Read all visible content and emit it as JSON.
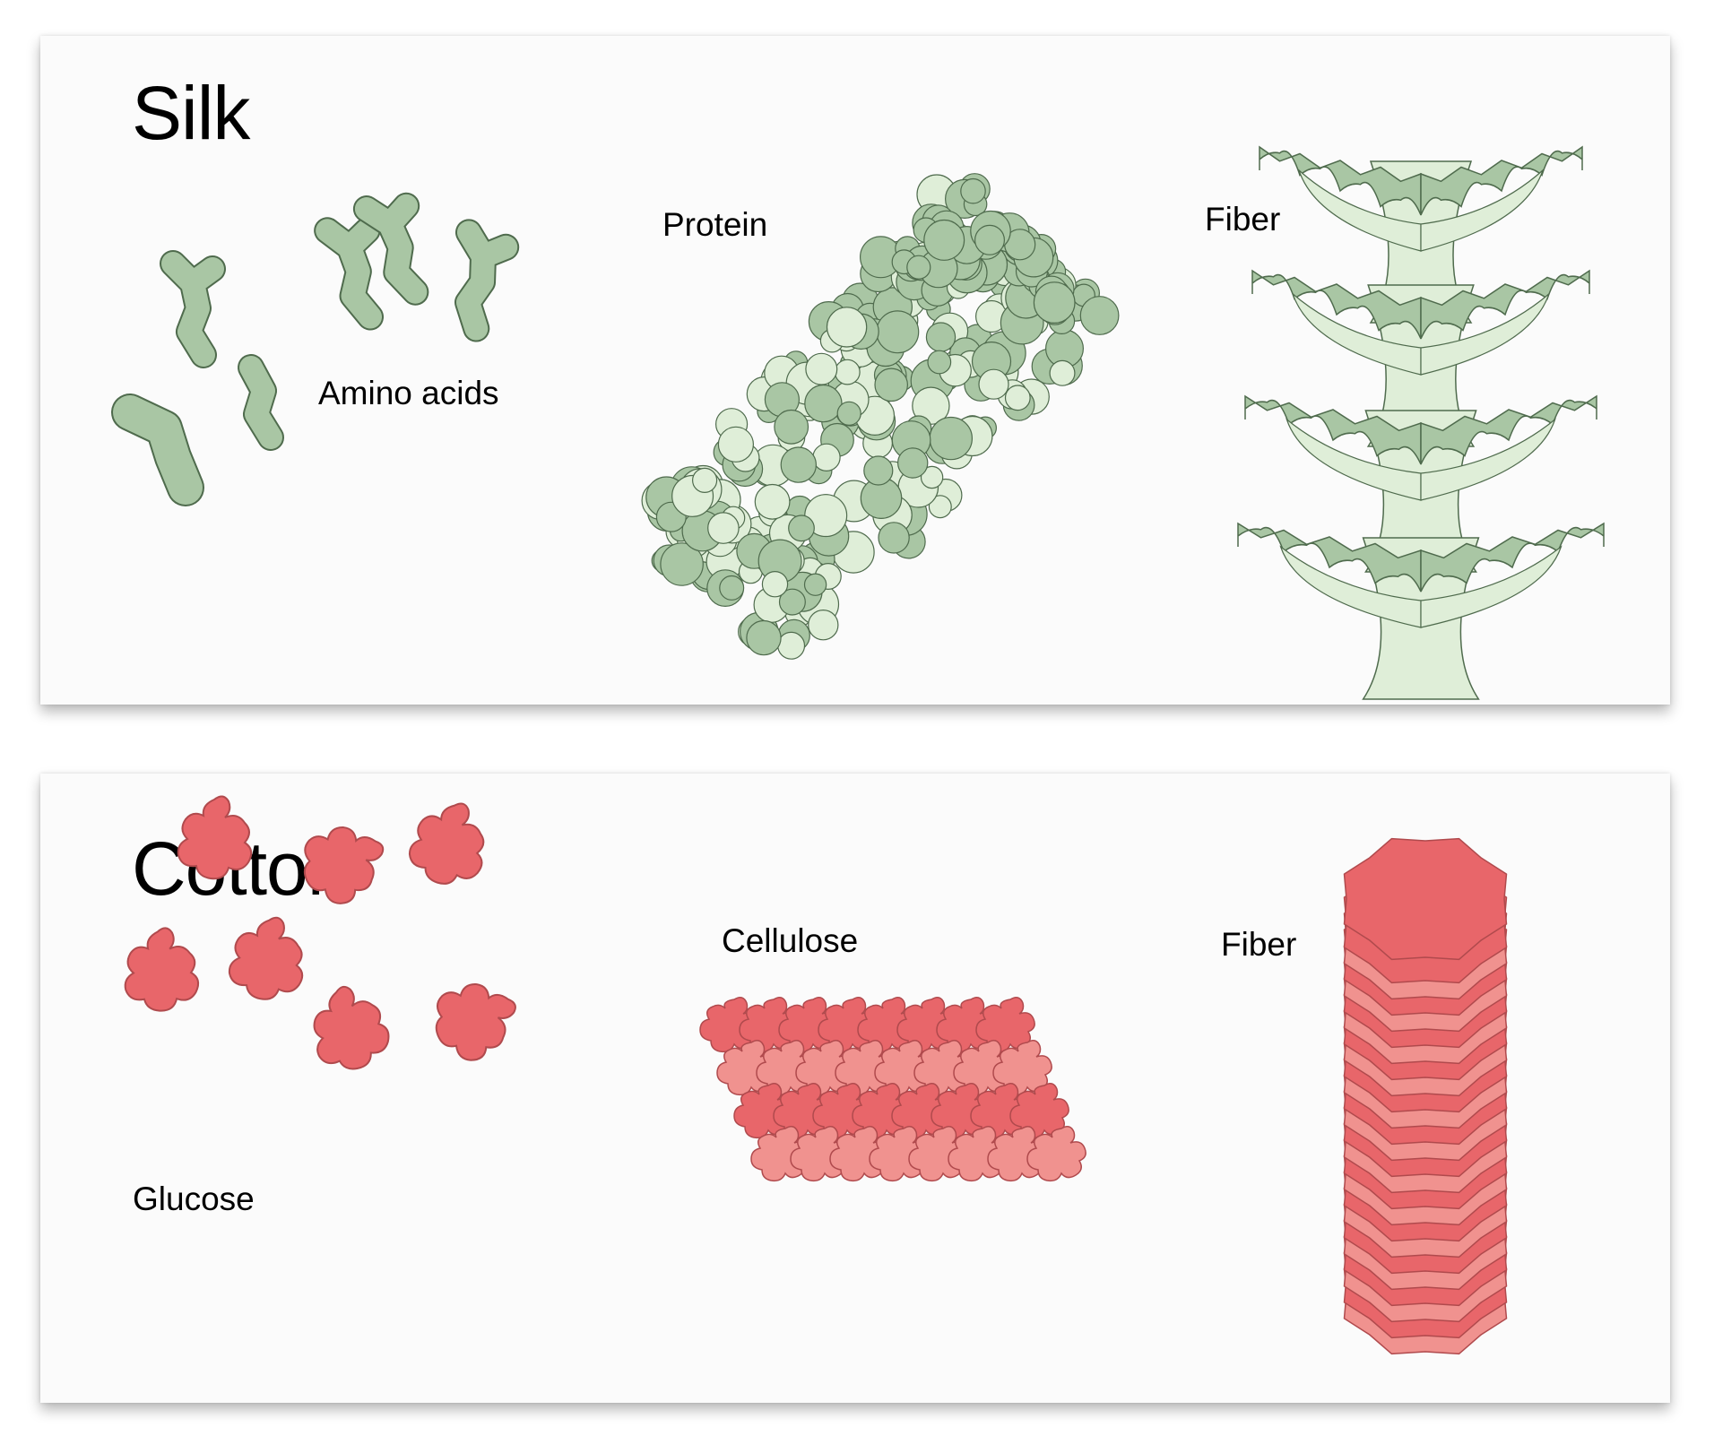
{
  "silk": {
    "title": "Silk",
    "labels": {
      "monomer": "Amino acids",
      "polymer": "Protein",
      "fiber": "Fiber"
    }
  },
  "cotton": {
    "title": "Cotton",
    "labels": {
      "monomer": "Glucose",
      "polymer": "Cellulose",
      "fiber": "Fiber"
    }
  },
  "colors": {
    "silk_dark": "#a9c6a4",
    "silk_light": "#dfeed8",
    "silk_stroke": "#4f6b4d",
    "cotton_dark": "#e8666a",
    "cotton_light": "#f0928f",
    "cotton_stroke": "#b04a4d"
  }
}
